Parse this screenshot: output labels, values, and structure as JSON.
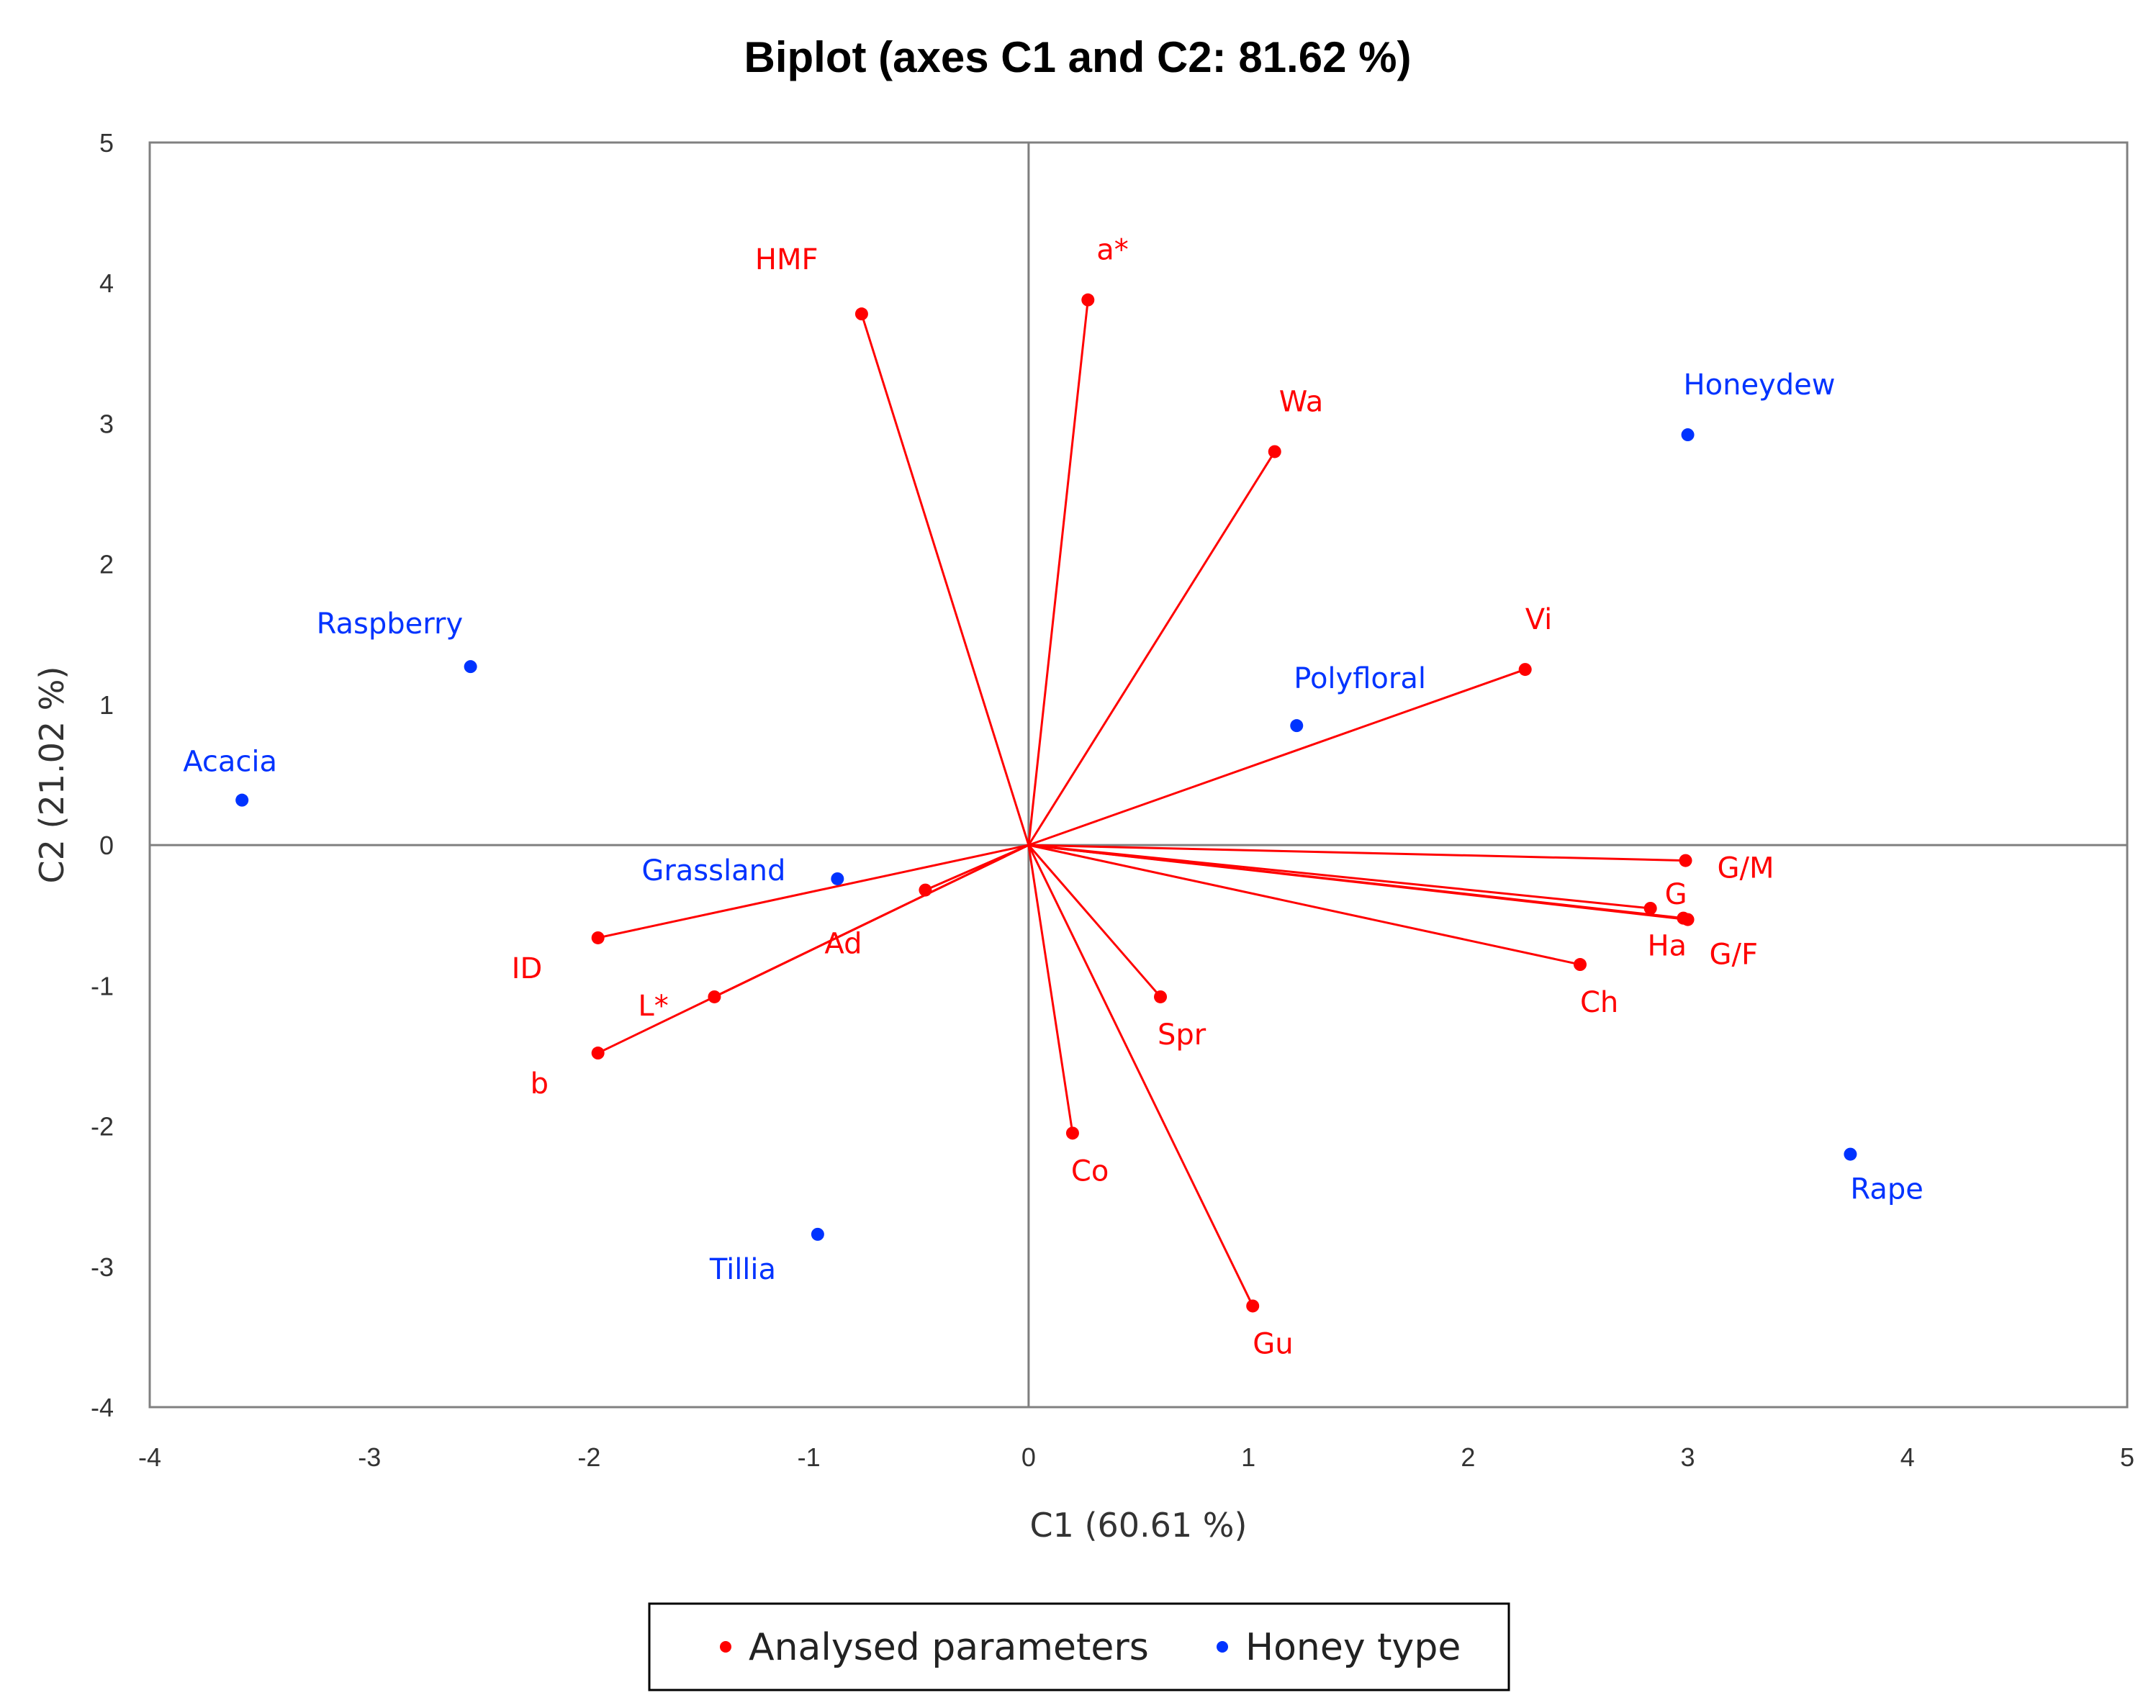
{
  "colors": {
    "parameters": "#ff0000",
    "honey_types": "#0033ff",
    "axis": "#7f7f7f",
    "frame": "#808080"
  },
  "chart_data": {
    "type": "scatter",
    "subtype": "biplot",
    "title": "Biplot (axes C1 and C2: 81.62 %)",
    "xlabel": "C1 (60.61 %)",
    "ylabel": "C2 (21.02 %)",
    "xlim": [
      -4,
      5
    ],
    "ylim": [
      -4,
      5
    ],
    "xticks": [
      "-4",
      "-3",
      "-2",
      "-1",
      "0",
      "1",
      "2",
      "3",
      "4",
      "5"
    ],
    "yticks": [
      "-4",
      "-3",
      "-2",
      "-1",
      "0",
      "1",
      "2",
      "3",
      "4",
      "5"
    ],
    "grid": false,
    "legend_position": "bottom",
    "legend": [
      {
        "label": "Analysed parameters",
        "color_key": "parameters"
      },
      {
        "label": "Honey type",
        "color_key": "honey_types"
      }
    ],
    "series": [
      {
        "name": "Analysed parameters",
        "vectors": true,
        "points": [
          {
            "label": "HMF",
            "x": -0.76,
            "y": 3.78
          },
          {
            "label": "a*",
            "x": 0.27,
            "y": 3.88
          },
          {
            "label": "Wa",
            "x": 1.12,
            "y": 2.8
          },
          {
            "label": "Vi",
            "x": 2.26,
            "y": 1.25
          },
          {
            "label": "G/M",
            "x": 2.99,
            "y": -0.11
          },
          {
            "label": "G",
            "x": 2.83,
            "y": -0.45
          },
          {
            "label": "Ha",
            "x": 2.98,
            "y": -0.52
          },
          {
            "label": "G/F",
            "x": 3.0,
            "y": -0.53
          },
          {
            "label": "Ch",
            "x": 2.51,
            "y": -0.85
          },
          {
            "label": "Spr",
            "x": 0.6,
            "y": -1.08
          },
          {
            "label": "Gu",
            "x": 1.02,
            "y": -3.28
          },
          {
            "label": "Co",
            "x": 0.2,
            "y": -2.05
          },
          {
            "label": "Ad",
            "x": -0.47,
            "y": -0.32
          },
          {
            "label": "ID",
            "x": -1.96,
            "y": -0.66
          },
          {
            "label": "L*",
            "x": -1.43,
            "y": -1.08
          },
          {
            "label": "b",
            "x": -1.96,
            "y": -1.48
          }
        ]
      },
      {
        "name": "Honey type",
        "vectors": false,
        "points": [
          {
            "label": "Honeydew",
            "x": 3.0,
            "y": 2.92
          },
          {
            "label": "Raspberry",
            "x": -2.54,
            "y": 1.27
          },
          {
            "label": "Polyfloral",
            "x": 1.22,
            "y": 0.85
          },
          {
            "label": "Acacia",
            "x": -3.58,
            "y": 0.32
          },
          {
            "label": "Grassland",
            "x": -0.87,
            "y": -0.24
          },
          {
            "label": "Tillia",
            "x": -0.96,
            "y": -2.77
          },
          {
            "label": "Rape",
            "x": 3.74,
            "y": -2.2
          }
        ]
      }
    ]
  }
}
